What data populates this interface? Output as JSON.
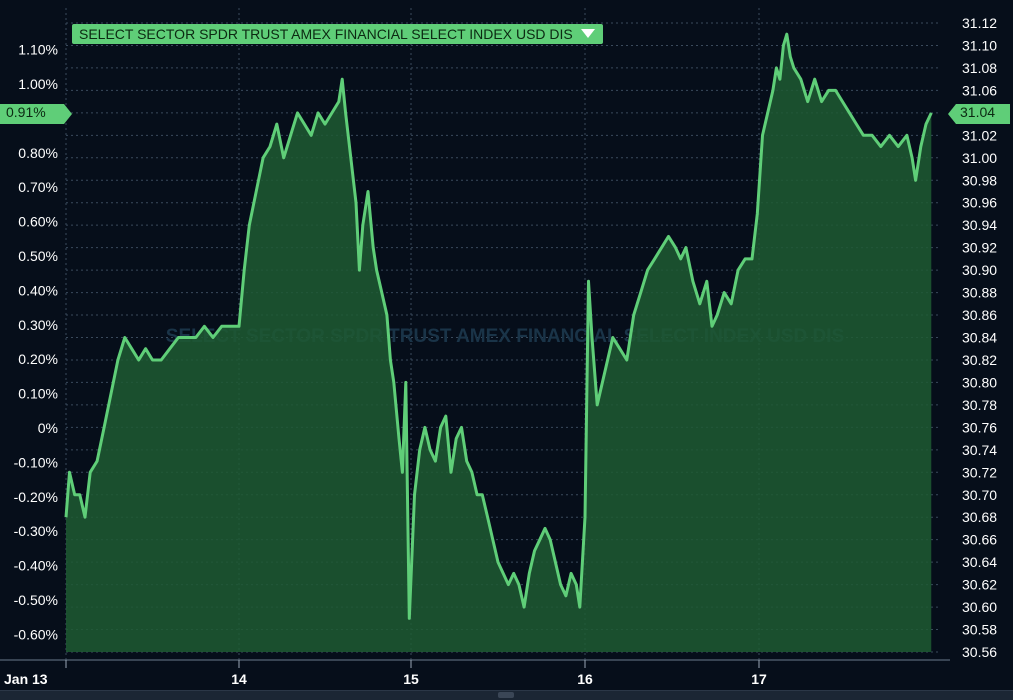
{
  "legend": {
    "label": "SELECT SECTOR SPDR TRUST AMEX FINANCIAL SELECT INDEX USD DIS"
  },
  "watermark": "SELECT SECTOR SPDR TRUST AMEX FINANCIAL SELECT INDEX USD DIS",
  "current": {
    "percent_label": "0.91%",
    "price_label": "31.04"
  },
  "colors": {
    "line": "#5fce78",
    "fill": "#1f5a32",
    "background": "#060e1a",
    "grid": "#3a4a5c"
  },
  "chart_data": {
    "type": "area",
    "title": "",
    "xlabel": "",
    "ylabel": "",
    "x_axis_labels": [
      "Jan 13",
      "14",
      "15",
      "16",
      "17"
    ],
    "left_axis": {
      "unit": "percent",
      "ticks": [
        "1.10%",
        "1.00%",
        "0.90%",
        "0.80%",
        "0.70%",
        "0.60%",
        "0.50%",
        "0.40%",
        "0.30%",
        "0.20%",
        "0.10%",
        "0%",
        "-0.10%",
        "-0.20%",
        "-0.30%",
        "-0.40%",
        "-0.50%",
        "-0.60%"
      ]
    },
    "right_axis": {
      "unit": "price",
      "ylim": [
        30.56,
        31.12
      ],
      "ticks": [
        "31.12",
        "31.10",
        "31.08",
        "31.06",
        "31.04",
        "31.02",
        "31.00",
        "30.98",
        "30.96",
        "30.94",
        "30.92",
        "30.90",
        "30.88",
        "30.86",
        "30.84",
        "30.82",
        "30.80",
        "30.78",
        "30.76",
        "30.74",
        "30.72",
        "30.70",
        "30.68",
        "30.66",
        "30.64",
        "30.62",
        "30.60",
        "30.58",
        "30.56"
      ]
    },
    "grid": true,
    "series": [
      {
        "name": "SELECT SECTOR SPDR TRUST AMEX FINANCIAL SELECT INDEX USD DIS",
        "day_fraction": [
          0,
          0.02,
          0.05,
          0.08,
          0.11,
          0.14,
          0.18,
          0.22,
          0.26,
          0.3,
          0.34,
          0.38,
          0.42,
          0.46,
          0.5,
          0.55,
          0.6,
          0.65,
          0.7,
          0.75,
          0.8,
          0.85,
          0.9,
          0.95,
          1.0,
          1.03,
          1.06,
          1.1,
          1.14,
          1.18,
          1.22,
          1.26,
          1.3,
          1.34,
          1.38,
          1.42,
          1.46,
          1.5,
          1.54,
          1.58,
          1.6,
          1.62,
          1.65,
          1.68,
          1.7,
          1.72,
          1.75,
          1.78,
          1.8,
          1.83,
          1.86,
          1.88,
          1.9,
          1.93,
          1.95,
          1.97,
          1.99,
          2.02,
          2.05,
          2.08,
          2.11,
          2.14,
          2.17,
          2.2,
          2.23,
          2.26,
          2.29,
          2.32,
          2.35,
          2.38,
          2.41,
          2.44,
          2.47,
          2.5,
          2.53,
          2.56,
          2.59,
          2.62,
          2.65,
          2.68,
          2.71,
          2.74,
          2.77,
          2.8,
          2.83,
          2.86,
          2.89,
          2.92,
          2.95,
          2.97,
          3.0,
          3.02,
          3.04,
          3.07,
          3.1,
          3.13,
          3.16,
          3.2,
          3.24,
          3.28,
          3.32,
          3.36,
          3.4,
          3.44,
          3.48,
          3.52,
          3.55,
          3.58,
          3.62,
          3.66,
          3.7,
          3.73,
          3.76,
          3.8,
          3.84,
          3.88,
          3.92,
          3.96,
          3.99,
          4.02,
          4.05,
          4.08,
          4.1,
          4.12,
          4.14,
          4.16,
          4.18,
          4.2,
          4.24,
          4.28,
          4.32,
          4.36,
          4.4,
          4.44,
          4.48,
          4.52,
          4.56,
          4.6,
          4.65,
          4.7,
          4.75,
          4.8,
          4.85,
          4.88,
          4.9,
          4.93,
          4.96,
          4.99
        ],
        "values": [
          30.68,
          30.72,
          30.7,
          30.7,
          30.68,
          30.72,
          30.73,
          30.76,
          30.79,
          30.82,
          30.84,
          30.83,
          30.82,
          30.83,
          30.82,
          30.82,
          30.83,
          30.84,
          30.84,
          30.84,
          30.85,
          30.84,
          30.85,
          30.85,
          30.85,
          30.9,
          30.94,
          30.97,
          31.0,
          31.01,
          31.03,
          31.0,
          31.02,
          31.04,
          31.03,
          31.02,
          31.04,
          31.03,
          31.04,
          31.05,
          31.07,
          31.04,
          31.0,
          30.96,
          30.9,
          30.94,
          30.97,
          30.92,
          30.9,
          30.88,
          30.86,
          30.82,
          30.8,
          30.75,
          30.72,
          30.8,
          30.59,
          30.7,
          30.74,
          30.76,
          30.74,
          30.73,
          30.76,
          30.77,
          30.72,
          30.75,
          30.76,
          30.73,
          30.72,
          30.7,
          30.7,
          30.68,
          30.66,
          30.64,
          30.63,
          30.62,
          30.63,
          30.62,
          30.6,
          30.63,
          30.65,
          30.66,
          30.67,
          30.66,
          30.64,
          30.62,
          30.61,
          30.63,
          30.62,
          30.6,
          30.68,
          30.89,
          30.84,
          30.78,
          30.8,
          30.82,
          30.84,
          30.83,
          30.82,
          30.86,
          30.88,
          30.9,
          30.91,
          30.92,
          30.93,
          30.92,
          30.91,
          30.92,
          30.89,
          30.87,
          30.89,
          30.85,
          30.86,
          30.88,
          30.87,
          30.9,
          30.91,
          30.91,
          30.95,
          31.02,
          31.04,
          31.06,
          31.08,
          31.07,
          31.1,
          31.11,
          31.09,
          31.08,
          31.07,
          31.05,
          31.07,
          31.05,
          31.06,
          31.06,
          31.05,
          31.04,
          31.03,
          31.02,
          31.02,
          31.01,
          31.02,
          31.01,
          31.02,
          31.0,
          30.98,
          31.01,
          31.03,
          31.04
        ]
      }
    ]
  }
}
